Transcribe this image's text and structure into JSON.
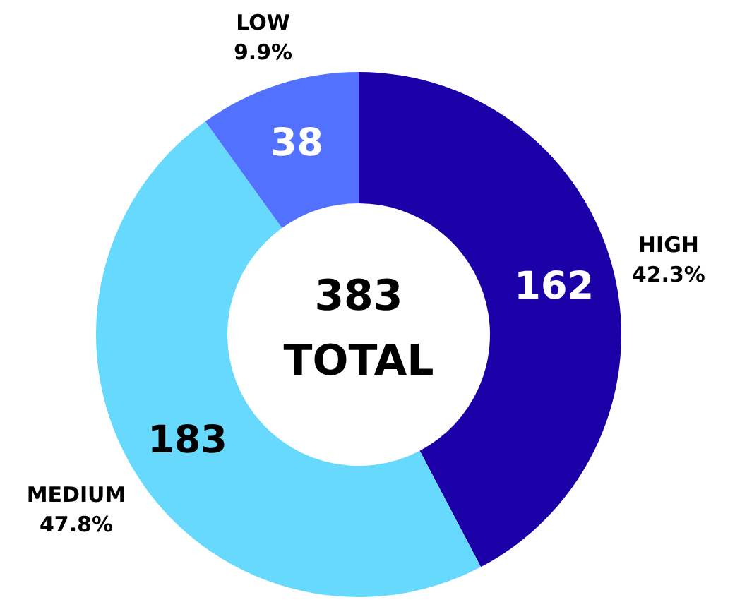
{
  "chart_data": {
    "type": "donut",
    "categories": [
      "HIGH",
      "MEDIUM",
      "LOW"
    ],
    "values": [
      162,
      183,
      38
    ],
    "colors": [
      "#1b00a8",
      "#66d9fc",
      "#5271ff"
    ],
    "data_labels": true,
    "annotations": [
      {
        "text": "42.3%",
        "x": "HIGH"
      },
      {
        "text": "47.8%",
        "x": "MEDIUM"
      },
      {
        "text": "9.9%",
        "x": "LOW"
      },
      "383",
      "TOTAL"
    ]
  }
}
